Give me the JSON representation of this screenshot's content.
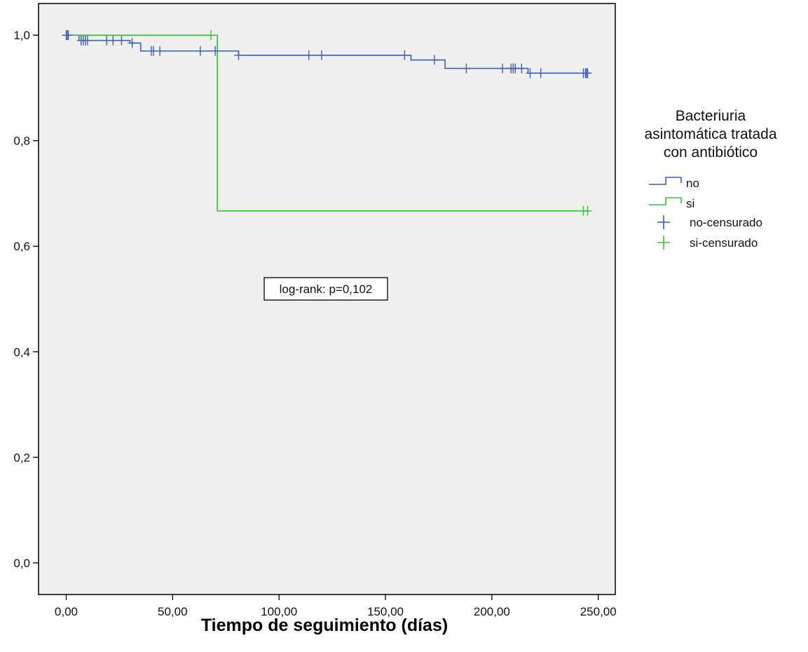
{
  "chart_data": {
    "type": "line",
    "title": "",
    "xlabel": "Tiempo de seguimiento (días)",
    "ylabel": "",
    "xlim": [
      -13,
      258
    ],
    "ylim": [
      -0.06,
      1.06
    ],
    "x_ticks": [
      0,
      50,
      100,
      150,
      200,
      250
    ],
    "x_tick_labels": [
      "0,00",
      "50,00",
      "100,00",
      "150,00",
      "200,00",
      "250,00"
    ],
    "y_ticks": [
      0,
      0.2,
      0.4,
      0.6,
      0.8,
      1.0
    ],
    "y_tick_labels": [
      "0,0",
      "0,2",
      "0,4",
      "0,6",
      "0,8",
      "1,0"
    ],
    "grid": false,
    "legend_position": "right",
    "legend": {
      "title": "Bacteriuria asintomática tratada con antibiótico",
      "title_lines": [
        "Bacteriuria",
        "asintomática tratada",
        "con antibiótico"
      ],
      "entries": [
        {
          "label": "no",
          "kind": "step",
          "color": "#3f5fae"
        },
        {
          "label": "si",
          "kind": "step",
          "color": "#3dbf3d"
        },
        {
          "label": "no-censurado",
          "kind": "censor",
          "color": "#3f5fae"
        },
        {
          "label": "si-censurado",
          "kind": "censor",
          "color": "#3dbf3d"
        }
      ]
    },
    "annotation": "log-rank: p=0,102",
    "series": [
      {
        "name": "no",
        "color": "#3f5fae",
        "steps": [
          [
            0,
            1.0
          ],
          [
            6,
            0.99
          ],
          [
            26,
            0.99
          ],
          [
            30,
            0.985
          ],
          [
            35,
            0.97
          ],
          [
            80,
            0.97
          ],
          [
            81,
            0.962
          ],
          [
            160,
            0.962
          ],
          [
            162,
            0.953
          ],
          [
            175,
            0.953
          ],
          [
            178,
            0.937
          ],
          [
            215,
            0.937
          ],
          [
            217,
            0.928
          ],
          [
            246,
            0.928
          ]
        ],
        "censored": [
          [
            0,
            1.0
          ],
          [
            0.5,
            1.0
          ],
          [
            1,
            1.0
          ],
          [
            7,
            0.99
          ],
          [
            8,
            0.99
          ],
          [
            9,
            0.99
          ],
          [
            10,
            0.99
          ],
          [
            19,
            0.99
          ],
          [
            22,
            0.99
          ],
          [
            26,
            0.99
          ],
          [
            31,
            0.985
          ],
          [
            40,
            0.97
          ],
          [
            41,
            0.97
          ],
          [
            44,
            0.97
          ],
          [
            63,
            0.97
          ],
          [
            70,
            0.97
          ],
          [
            81,
            0.962
          ],
          [
            114,
            0.962
          ],
          [
            120,
            0.962
          ],
          [
            159,
            0.962
          ],
          [
            173,
            0.953
          ],
          [
            188,
            0.937
          ],
          [
            205,
            0.937
          ],
          [
            209,
            0.937
          ],
          [
            210,
            0.937
          ],
          [
            211,
            0.937
          ],
          [
            214,
            0.937
          ],
          [
            218,
            0.928
          ],
          [
            223,
            0.928
          ],
          [
            243,
            0.928
          ],
          [
            244,
            0.928
          ],
          [
            244.5,
            0.928
          ],
          [
            245,
            0.928
          ]
        ]
      },
      {
        "name": "si",
        "color": "#3dbf3d",
        "steps": [
          [
            0,
            1.0
          ],
          [
            71,
            1.0
          ],
          [
            71,
            0.667
          ],
          [
            246,
            0.667
          ]
        ],
        "censored": [
          [
            68,
            1.0
          ],
          [
            243,
            0.667
          ],
          [
            245,
            0.667
          ]
        ]
      }
    ]
  }
}
